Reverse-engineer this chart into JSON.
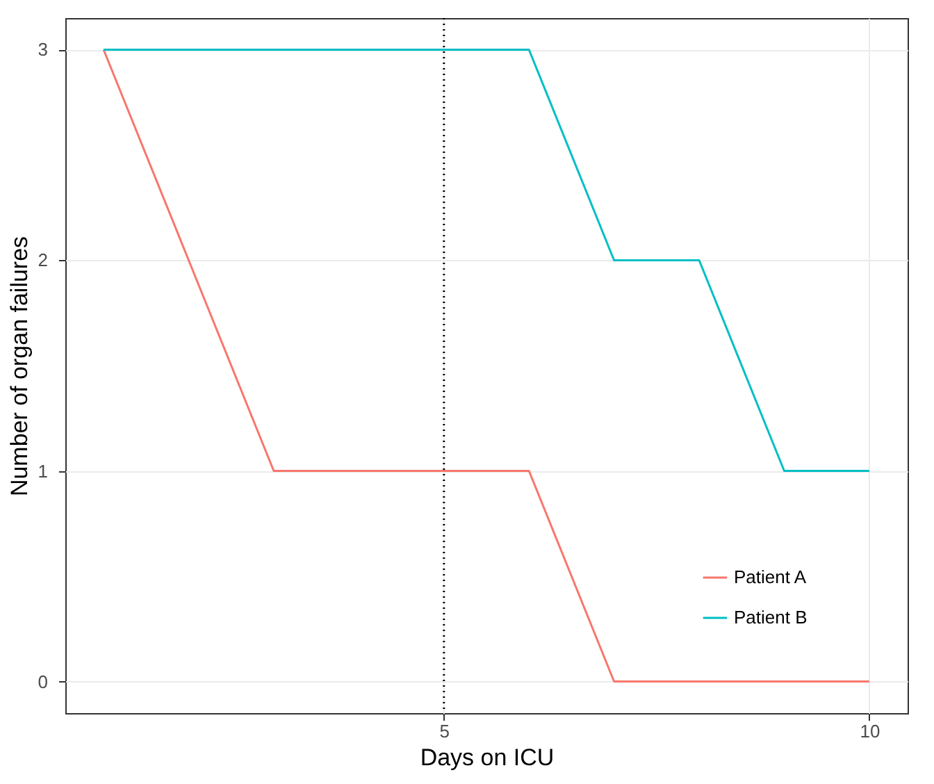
{
  "chart_data": {
    "type": "line",
    "xlabel": "Days on ICU",
    "ylabel": "Number of organ failures",
    "x": [
      1,
      2,
      3,
      4,
      5,
      6,
      7,
      8,
      9,
      10
    ],
    "series": [
      {
        "name": "Patient A",
        "color": "#f8766d",
        "values": [
          3,
          2,
          1,
          1,
          1,
          1,
          0,
          0,
          0,
          0
        ]
      },
      {
        "name": "Patient B",
        "color": "#00bfc4",
        "values": [
          3,
          3,
          3,
          3,
          3,
          3,
          2,
          2,
          1,
          1
        ]
      }
    ],
    "xlim": [
      0.55,
      10.45
    ],
    "xticks": [
      5,
      10
    ],
    "ylim": [
      -0.15,
      3.15
    ],
    "yticks": [
      0,
      1,
      2,
      3
    ],
    "grid": true,
    "legend": "bottom right",
    "ref_lines": [
      {
        "axis": "x",
        "value": 5,
        "color": "#000000",
        "line_style": "dotted"
      }
    ]
  }
}
